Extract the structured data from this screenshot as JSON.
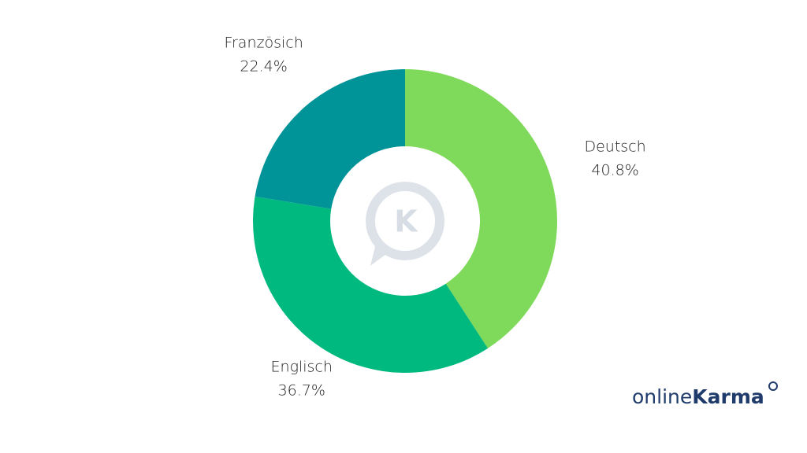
{
  "chart_data": {
    "type": "donut",
    "series": [
      {
        "name": "Deutsch",
        "value": 40.8,
        "value_label": "40.8%",
        "color": "#7fd95a"
      },
      {
        "name": "Englisch",
        "value": 36.7,
        "value_label": "36.7%",
        "color": "#00b97e"
      },
      {
        "name": "Französich",
        "value": 22.4,
        "value_label": "22.4%",
        "color": "#009398"
      }
    ],
    "center_icon_letter": "K"
  },
  "logo": {
    "text_light": "online",
    "text_bold": "Karma"
  }
}
